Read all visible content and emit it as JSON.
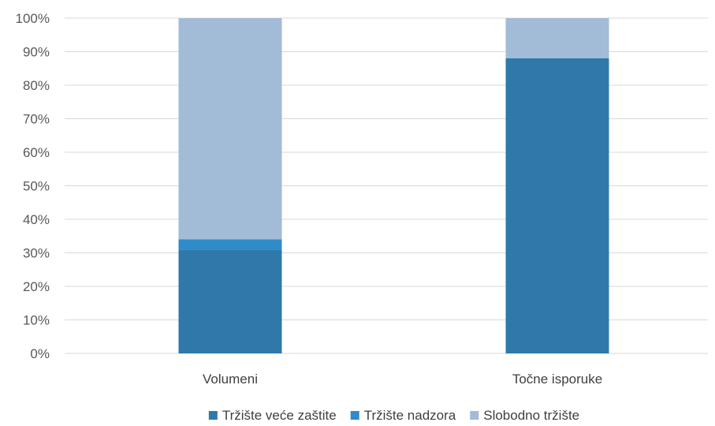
{
  "chart_data": {
    "type": "bar",
    "stacked": true,
    "categories": [
      "Volumeni",
      "Točne isporuke"
    ],
    "series": [
      {
        "name": "Tržište veće zaštite",
        "values": [
          31,
          88
        ],
        "color": "#2e79a9"
      },
      {
        "name": "Tržište nadzora",
        "values": [
          3,
          0
        ],
        "color": "#2f8bc9"
      },
      {
        "name": "Slobodno tržište",
        "values": [
          66,
          12
        ],
        "color": "#a2bbd6"
      }
    ],
    "ylim": [
      0,
      100
    ],
    "yticks": [
      "0%",
      "10%",
      "20%",
      "30%",
      "40%",
      "50%",
      "60%",
      "70%",
      "80%",
      "90%",
      "100%"
    ],
    "title": "",
    "xlabel": "",
    "ylabel": "",
    "grid": true,
    "legend": "bottom-center"
  }
}
